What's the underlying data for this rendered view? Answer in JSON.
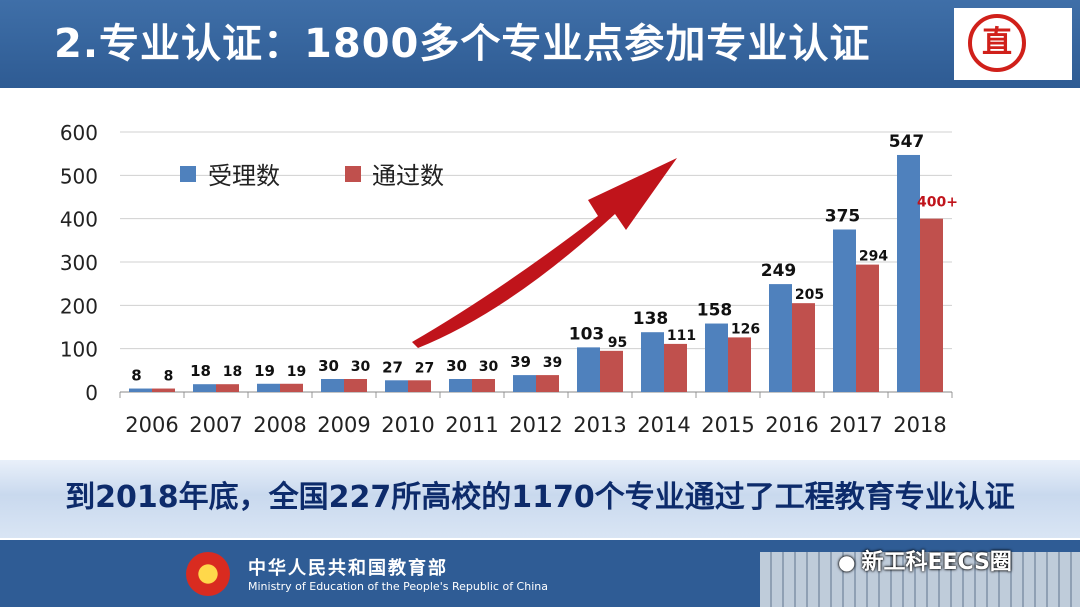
{
  "header": {
    "title": "2.专业认证：1800多个专业点参加专业认证"
  },
  "logo": {
    "glyph": "直"
  },
  "banner": {
    "text": "到2018年底，全国227所高校的1170个专业通过了工程教育专业认证"
  },
  "footer": {
    "ministry_cn": "中华人民共和国教育部",
    "ministry_en": "Ministry of Education of the People's Republic of China",
    "wechat": "新工科EECS圈"
  },
  "colors": {
    "series1": "#4f81bd",
    "series2": "#c0504d",
    "arrow": "#c0141b",
    "accent_label": "#c0141b"
  },
  "chart_data": {
    "type": "bar",
    "categories": [
      "2006",
      "2007",
      "2008",
      "2009",
      "2010",
      "2011",
      "2012",
      "2013",
      "2014",
      "2015",
      "2016",
      "2017",
      "2018"
    ],
    "series": [
      {
        "name": "受理数",
        "values": [
          8,
          18,
          19,
          30,
          27,
          30,
          39,
          103,
          138,
          158,
          249,
          375,
          547
        ],
        "labels": [
          "8",
          "18",
          "19",
          "30",
          "27",
          "30",
          "39",
          "103",
          "138",
          "158",
          "249",
          "375",
          "547"
        ]
      },
      {
        "name": "通过数",
        "values": [
          8,
          18,
          19,
          30,
          27,
          30,
          39,
          95,
          111,
          126,
          205,
          294,
          400
        ],
        "labels": [
          "8",
          "18",
          "19",
          "30",
          "27",
          "30",
          "39",
          "95",
          "111",
          "126",
          "205",
          "294",
          "400+"
        ]
      }
    ],
    "ylim": [
      0,
      600
    ],
    "yticks": [
      "0",
      "100",
      "200",
      "300",
      "400",
      "500",
      "600"
    ],
    "grid": true,
    "legend_position": "top-left"
  }
}
